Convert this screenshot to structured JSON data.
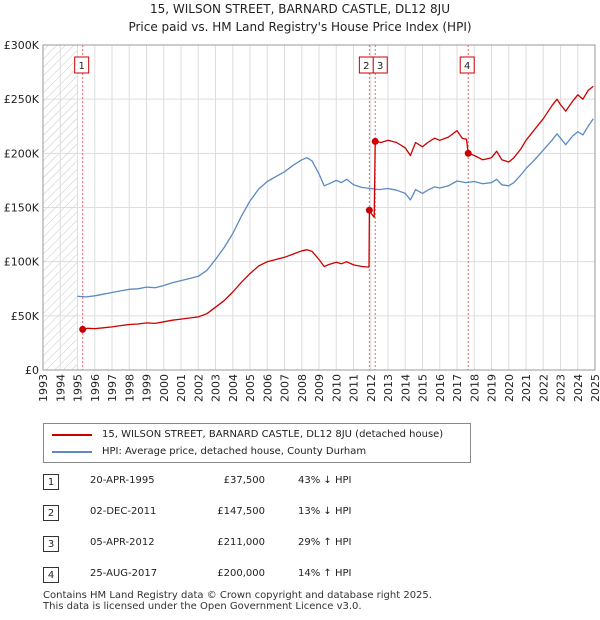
{
  "chart_data": {
    "type": "line",
    "title": "15, WILSON STREET, BARNARD CASTLE, DL12 8JU",
    "subtitle": "Price paid vs. HM Land Registry's House Price Index (HPI)",
    "xlim": [
      1993,
      2025
    ],
    "ylim": [
      0,
      300000
    ],
    "yticks": [
      {
        "value": 0,
        "label": "£0"
      },
      {
        "value": 50000,
        "label": "£50K"
      },
      {
        "value": 100000,
        "label": "£100K"
      },
      {
        "value": 150000,
        "label": "£150K"
      },
      {
        "value": 200000,
        "label": "£200K"
      },
      {
        "value": 250000,
        "label": "£250K"
      },
      {
        "value": 300000,
        "label": "£300K"
      }
    ],
    "xticks": [
      "1993",
      "1994",
      "1995",
      "1996",
      "1997",
      "1998",
      "1999",
      "2000",
      "2001",
      "2002",
      "2003",
      "2004",
      "2005",
      "2006",
      "2007",
      "2008",
      "2009",
      "2010",
      "2011",
      "2012",
      "2013",
      "2014",
      "2015",
      "2016",
      "2017",
      "2018",
      "2019",
      "2020",
      "2021",
      "2022",
      "2023",
      "2024",
      "2025"
    ],
    "hatch_until": 1995.0,
    "series": [
      {
        "name": "15, WILSON STREET, BARNARD CASTLE, DL12 8JU (detached house)",
        "color": "#cc0000",
        "points": [
          [
            1995.3,
            37500
          ],
          [
            1995.6,
            38500
          ],
          [
            1996.0,
            38200
          ],
          [
            1996.5,
            39000
          ],
          [
            1997.0,
            39800
          ],
          [
            1997.5,
            41000
          ],
          [
            1998.0,
            42000
          ],
          [
            1998.5,
            42500
          ],
          [
            1999.0,
            43500
          ],
          [
            1999.5,
            43000
          ],
          [
            2000.0,
            44500
          ],
          [
            2000.5,
            46000
          ],
          [
            2001.0,
            47000
          ],
          [
            2001.5,
            48000
          ],
          [
            2002.0,
            49000
          ],
          [
            2002.5,
            52000
          ],
          [
            2003.0,
            58000
          ],
          [
            2003.5,
            64000
          ],
          [
            2004.0,
            72000
          ],
          [
            2004.5,
            81000
          ],
          [
            2005.0,
            89000
          ],
          [
            2005.5,
            96000
          ],
          [
            2006.0,
            100000
          ],
          [
            2006.5,
            102000
          ],
          [
            2007.0,
            104000
          ],
          [
            2007.5,
            107000
          ],
          [
            2008.0,
            110000
          ],
          [
            2008.3,
            111000
          ],
          [
            2008.6,
            109500
          ],
          [
            2009.0,
            102000
          ],
          [
            2009.3,
            95500
          ],
          [
            2009.6,
            97500
          ],
          [
            2010.0,
            99500
          ],
          [
            2010.3,
            98000
          ],
          [
            2010.6,
            100000
          ],
          [
            2011.0,
            97000
          ],
          [
            2011.5,
            95500
          ],
          [
            2011.9,
            95000
          ],
          [
            2011.92,
            147500
          ],
          [
            2012.0,
            145000
          ],
          [
            2012.2,
            141000
          ],
          [
            2012.26,
            211000
          ],
          [
            2012.6,
            210000
          ],
          [
            2013.0,
            212000
          ],
          [
            2013.5,
            210000
          ],
          [
            2014.0,
            205000
          ],
          [
            2014.3,
            198000
          ],
          [
            2014.6,
            210000
          ],
          [
            2015.0,
            206000
          ],
          [
            2015.3,
            210000
          ],
          [
            2015.7,
            214000
          ],
          [
            2016.0,
            212000
          ],
          [
            2016.5,
            215000
          ],
          [
            2017.0,
            221000
          ],
          [
            2017.3,
            214000
          ],
          [
            2017.55,
            213000
          ],
          [
            2017.65,
            200000
          ],
          [
            2018.0,
            198000
          ],
          [
            2018.5,
            194000
          ],
          [
            2019.0,
            196000
          ],
          [
            2019.3,
            202000
          ],
          [
            2019.6,
            194000
          ],
          [
            2020.0,
            192000
          ],
          [
            2020.3,
            196000
          ],
          [
            2020.7,
            204000
          ],
          [
            2021.0,
            212000
          ],
          [
            2021.5,
            222000
          ],
          [
            2022.0,
            232000
          ],
          [
            2022.5,
            244000
          ],
          [
            2022.8,
            250000
          ],
          [
            2023.0,
            245000
          ],
          [
            2023.3,
            239000
          ],
          [
            2023.7,
            248000
          ],
          [
            2024.0,
            254000
          ],
          [
            2024.3,
            250000
          ],
          [
            2024.6,
            258000
          ],
          [
            2024.9,
            262000
          ]
        ]
      },
      {
        "name": "HPI: Average price, detached house, County Durham",
        "color": "#5b8bc2",
        "points": [
          [
            1995.0,
            68000
          ],
          [
            1995.5,
            67500
          ],
          [
            1996.0,
            68500
          ],
          [
            1996.5,
            70000
          ],
          [
            1997.0,
            71500
          ],
          [
            1997.5,
            73000
          ],
          [
            1998.0,
            74500
          ],
          [
            1998.5,
            75000
          ],
          [
            1999.0,
            76500
          ],
          [
            1999.5,
            76000
          ],
          [
            2000.0,
            78000
          ],
          [
            2000.5,
            80500
          ],
          [
            2001.0,
            82500
          ],
          [
            2001.5,
            84500
          ],
          [
            2002.0,
            86500
          ],
          [
            2002.5,
            92000
          ],
          [
            2003.0,
            102000
          ],
          [
            2003.5,
            113000
          ],
          [
            2004.0,
            126000
          ],
          [
            2004.5,
            142000
          ],
          [
            2005.0,
            156000
          ],
          [
            2005.5,
            167000
          ],
          [
            2006.0,
            174000
          ],
          [
            2006.5,
            178500
          ],
          [
            2007.0,
            183000
          ],
          [
            2007.5,
            189000
          ],
          [
            2008.0,
            194000
          ],
          [
            2008.3,
            196000
          ],
          [
            2008.6,
            193000
          ],
          [
            2009.0,
            181000
          ],
          [
            2009.3,
            170000
          ],
          [
            2009.6,
            172000
          ],
          [
            2010.0,
            175000
          ],
          [
            2010.3,
            173000
          ],
          [
            2010.6,
            176000
          ],
          [
            2011.0,
            171000
          ],
          [
            2011.5,
            168500
          ],
          [
            2012.0,
            167500
          ],
          [
            2012.5,
            166500
          ],
          [
            2013.0,
            167500
          ],
          [
            2013.5,
            166000
          ],
          [
            2014.0,
            163000
          ],
          [
            2014.3,
            157000
          ],
          [
            2014.6,
            166500
          ],
          [
            2015.0,
            163000
          ],
          [
            2015.3,
            166000
          ],
          [
            2015.7,
            169000
          ],
          [
            2016.0,
            168000
          ],
          [
            2016.5,
            170000
          ],
          [
            2017.0,
            174500
          ],
          [
            2017.5,
            173000
          ],
          [
            2018.0,
            174000
          ],
          [
            2018.5,
            172000
          ],
          [
            2019.0,
            173000
          ],
          [
            2019.3,
            176000
          ],
          [
            2019.6,
            171000
          ],
          [
            2020.0,
            170000
          ],
          [
            2020.3,
            173000
          ],
          [
            2020.7,
            180000
          ],
          [
            2021.0,
            186000
          ],
          [
            2021.5,
            194000
          ],
          [
            2022.0,
            203000
          ],
          [
            2022.5,
            212000
          ],
          [
            2022.8,
            218000
          ],
          [
            2023.0,
            214000
          ],
          [
            2023.3,
            208000
          ],
          [
            2023.7,
            216000
          ],
          [
            2024.0,
            220000
          ],
          [
            2024.3,
            217000
          ],
          [
            2024.6,
            225000
          ],
          [
            2024.9,
            232000
          ]
        ]
      }
    ],
    "markers": [
      {
        "label": "1",
        "year": 1995.3,
        "price": 37500
      },
      {
        "label": "2",
        "year": 2011.92,
        "price": 147500
      },
      {
        "label": "3",
        "year": 2012.26,
        "price": 211000
      },
      {
        "label": "4",
        "year": 2017.65,
        "price": 200000
      }
    ]
  },
  "legend": {
    "items": [
      {
        "label": "15, WILSON STREET, BARNARD CASTLE, DL12 8JU (detached house)",
        "color": "#cc0000"
      },
      {
        "label": "HPI: Average price, detached house, County Durham",
        "color": "#5b8bc2"
      }
    ]
  },
  "transactions": [
    {
      "num": "1",
      "date": "20-APR-1995",
      "price": "£37,500",
      "hpi": "43% ↓ HPI"
    },
    {
      "num": "2",
      "date": "02-DEC-2011",
      "price": "£147,500",
      "hpi": "13% ↓ HPI"
    },
    {
      "num": "3",
      "date": "05-APR-2012",
      "price": "£211,000",
      "hpi": "29% ↑ HPI"
    },
    {
      "num": "4",
      "date": "25-AUG-2017",
      "price": "£200,000",
      "hpi": "14% ↑ HPI"
    }
  ],
  "footer": {
    "line1": "Contains HM Land Registry data © Crown copyright and database right 2025.",
    "line2": "This data is licensed under the Open Government Licence v3.0."
  }
}
